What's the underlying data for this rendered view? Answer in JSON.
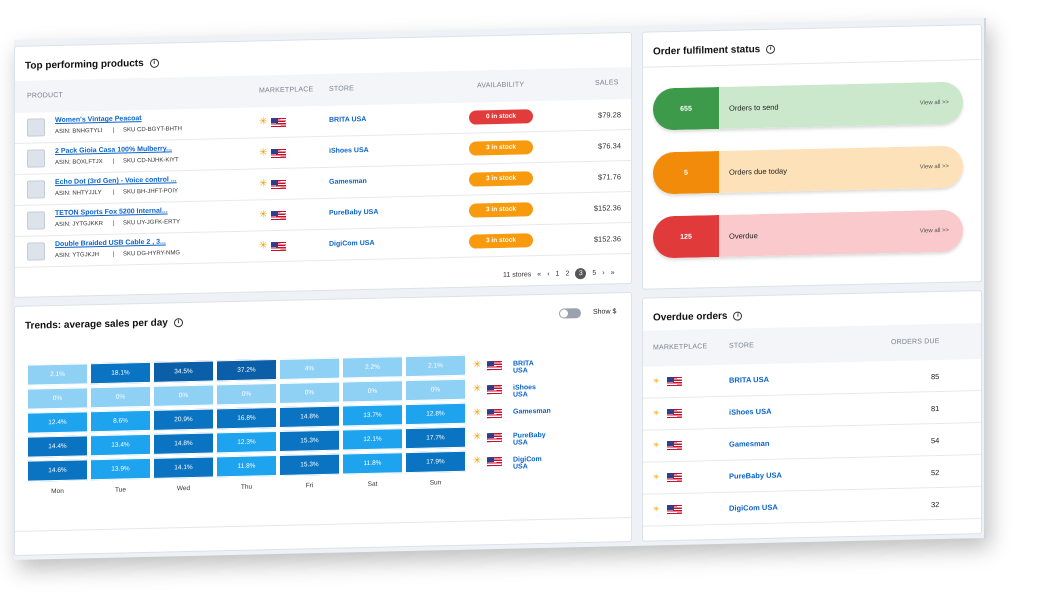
{
  "top_products": {
    "title": "Top performing products",
    "columns": [
      "PRODUCT",
      "MARKETPLACE",
      "STORE",
      "AVAILABILITY",
      "SALES"
    ],
    "rows": [
      {
        "name": "Women's Vintage Peacoat",
        "asin": "ASIN: BNHGTYLI",
        "sku": "SKU CD-BGYT-BHTH",
        "store": "BRITA USA",
        "availability": "0 in stock",
        "status_color": "#e23b3b",
        "sales": "$79.28"
      },
      {
        "name": "2 Pack Gioia Casa 100% Mulberry...",
        "asin": "ASIN: BOXLFTJX",
        "sku": "SKU CD-NJHK-KIYT",
        "store": "iShoes USA",
        "availability": "3 in stock",
        "status_color": "#f79a0e",
        "sales": "$76.34"
      },
      {
        "name": "Echo Dot (3rd Gen) - Voice control ...",
        "asin": "ASIN: NHTYJJLY",
        "sku": "SKU BH-JHFT-POIY",
        "store": "Gamesman",
        "availability": "3 in stock",
        "status_color": "#f79a0e",
        "sales": "$71.76"
      },
      {
        "name": "TETON Sports Fox 5200 Internal...",
        "asin": "ASIN: JYTGJKKR",
        "sku": "SKU UY-JGFK-ERTY",
        "store": "PureBaby USA",
        "availability": "3 in stock",
        "status_color": "#f79a0e",
        "sales": "$152.36"
      },
      {
        "name": "Double Braided USB Cable 2 , 3...",
        "asin": "ASIN: YTGJKJH",
        "sku": "SKU DG-HYRY-NMG",
        "store": "DigiCom USA",
        "availability": "3 in stock",
        "status_color": "#f79a0e",
        "sales": "$152.36"
      }
    ],
    "pager": {
      "count": "11 stores",
      "first": "«",
      "prev": "‹",
      "pages": [
        "1",
        "2",
        "3",
        "5"
      ],
      "current": "3",
      "next": "›",
      "last": "»"
    }
  },
  "fulfilment": {
    "title": "Order fulfilment status",
    "items": [
      {
        "count": "655",
        "label": "Orders to send",
        "link": "View all >>",
        "num_color": "#3d9a4a",
        "bg_color": "#cbe8cd"
      },
      {
        "count": "5",
        "label": "Orders due today",
        "link": "View all >>",
        "num_color": "#f28a0a",
        "bg_color": "#fde1b8"
      },
      {
        "count": "125",
        "label": "Overdue",
        "link": "View all >>",
        "num_color": "#e03a3a",
        "bg_color": "#f9c9cb"
      }
    ]
  },
  "trends": {
    "title": "Trends: average sales per day",
    "toggle_label": "Show $",
    "days": [
      "Mon",
      "Tue",
      "Wed",
      "Thu",
      "Fri",
      "Sat",
      "Sun"
    ],
    "stores": [
      "BRITA USA",
      "iShoes USA",
      "Gamesman",
      "PureBaby USA",
      "DigiCom USA"
    ],
    "cells": [
      [
        "2.1%",
        "18.1%",
        "34.5%",
        "37.2%",
        "4%",
        "2.2%",
        "2.1%"
      ],
      [
        "0%",
        "0%",
        "0%",
        "0%",
        "0%",
        "0%",
        "0%"
      ],
      [
        "12.4%",
        "8.6%",
        "20.9%",
        "16.8%",
        "14.8%",
        "13.7%",
        "12.8%"
      ],
      [
        "14.4%",
        "13.4%",
        "14.8%",
        "12.3%",
        "15.3%",
        "12.1%",
        "17.7%"
      ],
      [
        "14.6%",
        "13.9%",
        "14.1%",
        "11.8%",
        "15.3%",
        "11.8%",
        "17.9%"
      ]
    ],
    "colors": [
      "#8fd0f5",
      "#1ea3ee",
      "#0a74c2",
      "#0b5fa8"
    ]
  },
  "overdue_orders": {
    "title": "Overdue orders",
    "columns": [
      "MARKETPLACE",
      "STORE",
      "ORDERS DUE"
    ],
    "rows": [
      {
        "store": "BRITA USA",
        "due": "85"
      },
      {
        "store": "iShoes USA",
        "due": "81"
      },
      {
        "store": "Gamesman",
        "due": "54"
      },
      {
        "store": "PureBaby USA",
        "due": "52"
      },
      {
        "store": "DigiCom USA",
        "due": "32"
      }
    ]
  }
}
